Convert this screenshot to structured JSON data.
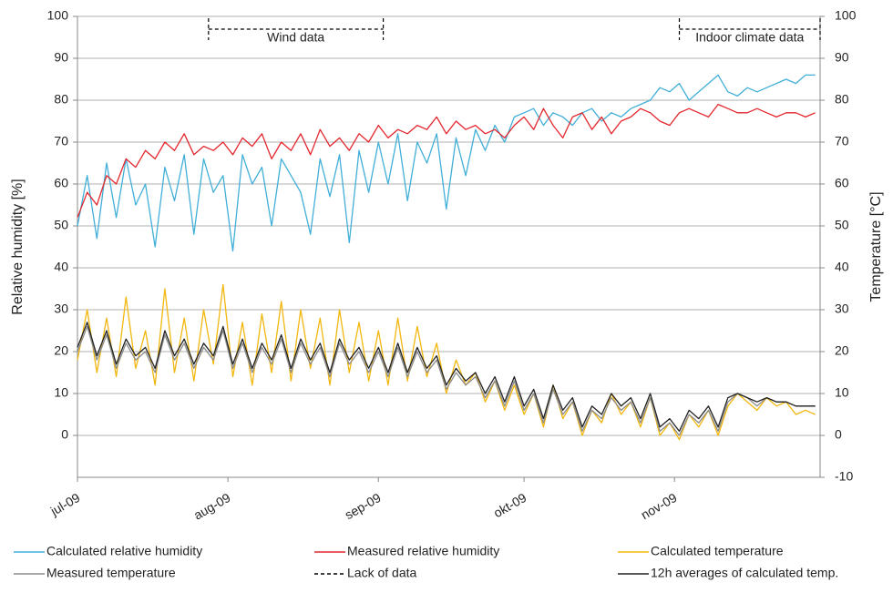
{
  "chart_data": {
    "type": "line",
    "y_label": "Relative humidity [%]",
    "y2_label": "Temperature [°C]",
    "x": [
      0,
      2,
      4,
      6,
      8,
      10,
      12,
      14,
      16,
      18,
      20,
      22,
      24,
      26,
      28,
      30,
      32,
      34,
      36,
      38,
      40,
      42,
      44,
      46,
      48,
      50,
      52,
      54,
      56,
      58,
      60,
      62,
      64,
      66,
      68,
      70,
      72,
      74,
      76,
      78,
      80,
      82,
      84,
      86,
      88,
      90,
      92,
      94,
      96,
      98,
      100,
      102,
      104,
      106,
      108,
      110,
      112,
      114,
      116,
      118,
      120,
      122,
      124,
      126,
      128,
      130,
      132,
      134,
      136,
      138,
      140,
      142,
      144,
      146,
      148,
      150,
      152
    ],
    "xlim": [
      0,
      153
    ],
    "xticks": [
      {
        "value": 0,
        "label": "jul-09"
      },
      {
        "value": 31,
        "label": "aug-09"
      },
      {
        "value": 62,
        "label": "sep-09"
      },
      {
        "value": 92,
        "label": "okt-09"
      },
      {
        "value": 123,
        "label": "nov-09"
      }
    ],
    "ylim": [
      -10,
      100
    ],
    "yticks": [
      0,
      10,
      20,
      30,
      40,
      50,
      60,
      70,
      80,
      90,
      100
    ],
    "y2lim": [
      -10,
      100
    ],
    "y2ticks": [
      -10,
      0,
      10,
      20,
      30,
      40,
      50,
      60,
      70,
      80,
      90,
      100
    ],
    "grid": true,
    "series": [
      {
        "name": "Calculated relative humidity",
        "color": "#41afd8",
        "values": [
          50,
          62,
          47,
          65,
          52,
          66,
          55,
          60,
          45,
          64,
          56,
          67,
          48,
          66,
          58,
          62,
          44,
          67,
          60,
          64,
          50,
          66,
          62,
          58,
          48,
          66,
          57,
          67,
          46,
          68,
          58,
          70,
          60,
          72,
          56,
          70,
          65,
          72,
          54,
          71,
          62,
          73,
          68,
          74,
          70,
          76,
          77,
          78,
          74,
          77,
          76,
          74,
          77,
          78,
          75,
          77,
          76,
          78,
          79,
          80,
          83,
          82,
          84,
          80,
          82,
          84,
          86,
          82,
          81,
          83,
          82,
          83,
          84,
          85,
          84,
          86,
          86
        ]
      },
      {
        "name": "Measured relative humidity",
        "color": "#e3262d",
        "values": [
          52,
          58,
          55,
          62,
          60,
          66,
          64,
          68,
          66,
          70,
          68,
          72,
          67,
          69,
          68,
          70,
          67,
          71,
          69,
          72,
          66,
          70,
          68,
          72,
          67,
          73,
          69,
          71,
          68,
          72,
          70,
          74,
          71,
          73,
          72,
          74,
          73,
          76,
          72,
          75,
          73,
          74,
          72,
          73,
          71,
          74,
          76,
          73,
          78,
          74,
          71,
          76,
          77,
          73,
          76,
          72,
          75,
          76,
          78,
          77,
          75,
          74,
          77,
          78,
          77,
          76,
          79,
          78,
          77,
          77,
          78,
          77,
          76,
          77,
          77,
          76,
          77
        ]
      },
      {
        "name": "Calculated temperature",
        "color": "#f2b70e",
        "axis": "y2",
        "values": [
          18,
          30,
          15,
          28,
          14,
          33,
          16,
          25,
          12,
          35,
          15,
          28,
          13,
          30,
          17,
          36,
          14,
          27,
          12,
          29,
          15,
          32,
          13,
          30,
          16,
          28,
          12,
          30,
          15,
          27,
          13,
          25,
          12,
          28,
          13,
          26,
          14,
          22,
          10,
          18,
          12,
          15,
          8,
          13,
          6,
          12,
          5,
          10,
          2,
          12,
          4,
          8,
          0,
          6,
          3,
          10,
          5,
          8,
          2,
          9,
          0,
          3,
          -1,
          5,
          2,
          6,
          0,
          7,
          10,
          8,
          6,
          9,
          7,
          8,
          5,
          6,
          5
        ]
      },
      {
        "name": "Measured temperature",
        "color": "#8c8c8c",
        "axis": "y2",
        "values": [
          20,
          26,
          18,
          24,
          16,
          22,
          18,
          20,
          15,
          24,
          18,
          22,
          16,
          21,
          18,
          25,
          16,
          22,
          15,
          21,
          17,
          23,
          15,
          22,
          17,
          21,
          14,
          22,
          17,
          20,
          15,
          20,
          14,
          21,
          14,
          20,
          15,
          18,
          11,
          15,
          12,
          14,
          9,
          13,
          7,
          13,
          6,
          10,
          3,
          11,
          5,
          8,
          1,
          6,
          4,
          9,
          6,
          8,
          3,
          9,
          1,
          3,
          0,
          5,
          3,
          6,
          1,
          8,
          10,
          9,
          7,
          9,
          8,
          8,
          7,
          7,
          7
        ]
      },
      {
        "name": "12h averages of calculated temp.",
        "color": "#222222",
        "axis": "y2",
        "values": [
          21,
          27,
          19,
          25,
          17,
          23,
          19,
          21,
          16,
          25,
          19,
          23,
          17,
          22,
          19,
          26,
          17,
          23,
          16,
          22,
          18,
          24,
          16,
          23,
          18,
          22,
          15,
          23,
          18,
          21,
          16,
          21,
          15,
          22,
          15,
          21,
          16,
          19,
          12,
          16,
          13,
          15,
          10,
          14,
          8,
          14,
          7,
          11,
          4,
          12,
          6,
          9,
          2,
          7,
          5,
          10,
          7,
          9,
          4,
          10,
          2,
          4,
          1,
          6,
          4,
          7,
          2,
          9,
          10,
          9,
          8,
          9,
          8,
          8,
          7,
          7,
          7
        ]
      }
    ],
    "lack_of_data": {
      "name": "Lack of data",
      "color": "#000000",
      "periods": [
        {
          "label": "Wind data",
          "x0": 27,
          "x1": 63
        },
        {
          "label": "Indoor climate data",
          "x0": 124,
          "x1": 153
        }
      ]
    }
  }
}
